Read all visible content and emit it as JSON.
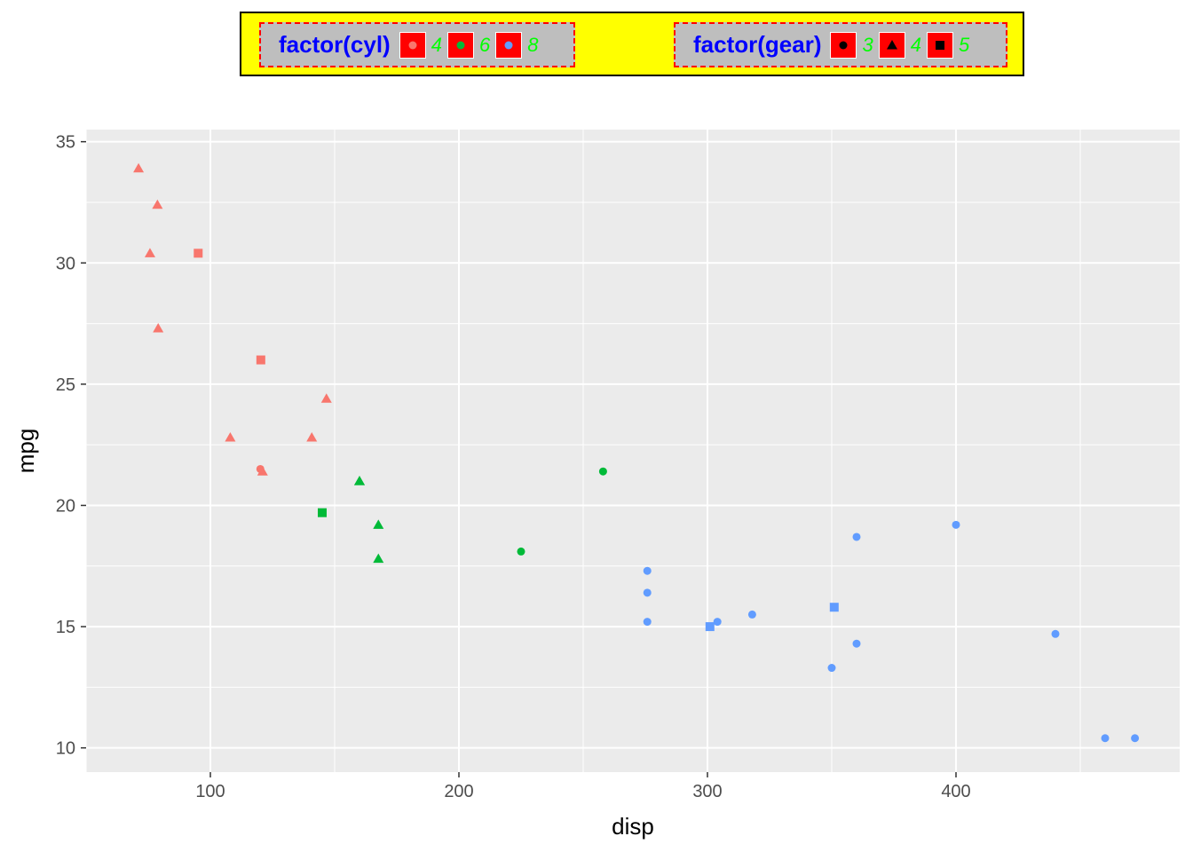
{
  "colors": {
    "panel": "#ebebeb",
    "grid": "#ffffff",
    "cyl4": "#f8766d",
    "cyl6": "#00ba38",
    "cyl8": "#619cff",
    "legend_bg": "#ffff00",
    "legend_box_bg": "#bebebe",
    "legend_box_border": "#ff0000",
    "legend_title": "#0000ff",
    "legend_label": "#00ff00",
    "legend_key_bg": "#ff0000"
  },
  "legend": {
    "cyl": {
      "title": "factor(cyl)",
      "items": [
        {
          "label": "4",
          "color": "#f8766d",
          "shape": "circle"
        },
        {
          "label": "6",
          "color": "#00ba38",
          "shape": "circle"
        },
        {
          "label": "8",
          "color": "#619cff",
          "shape": "circle"
        }
      ]
    },
    "gear": {
      "title": "factor(gear)",
      "items": [
        {
          "label": "3",
          "color": "#000000",
          "shape": "circle"
        },
        {
          "label": "4",
          "color": "#000000",
          "shape": "triangle"
        },
        {
          "label": "5",
          "color": "#000000",
          "shape": "square"
        }
      ]
    }
  },
  "chart_data": {
    "type": "scatter",
    "title": "",
    "xlabel": "disp",
    "ylabel": "mpg",
    "xlim": [
      50,
      490
    ],
    "ylim": [
      9,
      35.5
    ],
    "x_ticks": [
      100,
      200,
      300,
      400
    ],
    "y_ticks": [
      10,
      15,
      20,
      25,
      30,
      35
    ],
    "grid": true,
    "legend_position": "top",
    "points": [
      {
        "x": 160,
        "y": 21.0,
        "cyl": "6",
        "gear": "4"
      },
      {
        "x": 160,
        "y": 21.0,
        "cyl": "6",
        "gear": "4"
      },
      {
        "x": 108,
        "y": 22.8,
        "cyl": "4",
        "gear": "4"
      },
      {
        "x": 258,
        "y": 21.4,
        "cyl": "6",
        "gear": "3"
      },
      {
        "x": 360,
        "y": 18.7,
        "cyl": "8",
        "gear": "3"
      },
      {
        "x": 225,
        "y": 18.1,
        "cyl": "6",
        "gear": "3"
      },
      {
        "x": 360,
        "y": 14.3,
        "cyl": "8",
        "gear": "3"
      },
      {
        "x": 146.7,
        "y": 24.4,
        "cyl": "4",
        "gear": "4"
      },
      {
        "x": 140.8,
        "y": 22.8,
        "cyl": "4",
        "gear": "4"
      },
      {
        "x": 167.6,
        "y": 19.2,
        "cyl": "6",
        "gear": "4"
      },
      {
        "x": 167.6,
        "y": 17.8,
        "cyl": "6",
        "gear": "4"
      },
      {
        "x": 275.8,
        "y": 16.4,
        "cyl": "8",
        "gear": "3"
      },
      {
        "x": 275.8,
        "y": 17.3,
        "cyl": "8",
        "gear": "3"
      },
      {
        "x": 275.8,
        "y": 15.2,
        "cyl": "8",
        "gear": "3"
      },
      {
        "x": 472,
        "y": 10.4,
        "cyl": "8",
        "gear": "3"
      },
      {
        "x": 460,
        "y": 10.4,
        "cyl": "8",
        "gear": "3"
      },
      {
        "x": 440,
        "y": 14.7,
        "cyl": "8",
        "gear": "3"
      },
      {
        "x": 78.7,
        "y": 32.4,
        "cyl": "4",
        "gear": "4"
      },
      {
        "x": 75.7,
        "y": 30.4,
        "cyl": "4",
        "gear": "4"
      },
      {
        "x": 71.1,
        "y": 33.9,
        "cyl": "4",
        "gear": "4"
      },
      {
        "x": 120.1,
        "y": 21.5,
        "cyl": "4",
        "gear": "3"
      },
      {
        "x": 318,
        "y": 15.5,
        "cyl": "8",
        "gear": "3"
      },
      {
        "x": 304,
        "y": 15.2,
        "cyl": "8",
        "gear": "3"
      },
      {
        "x": 350,
        "y": 13.3,
        "cyl": "8",
        "gear": "3"
      },
      {
        "x": 400,
        "y": 19.2,
        "cyl": "8",
        "gear": "3"
      },
      {
        "x": 79,
        "y": 27.3,
        "cyl": "4",
        "gear": "4"
      },
      {
        "x": 120.3,
        "y": 26.0,
        "cyl": "4",
        "gear": "5"
      },
      {
        "x": 95.1,
        "y": 30.4,
        "cyl": "4",
        "gear": "5"
      },
      {
        "x": 351,
        "y": 15.8,
        "cyl": "8",
        "gear": "5"
      },
      {
        "x": 145,
        "y": 19.7,
        "cyl": "6",
        "gear": "5"
      },
      {
        "x": 301,
        "y": 15.0,
        "cyl": "8",
        "gear": "5"
      },
      {
        "x": 121,
        "y": 21.4,
        "cyl": "4",
        "gear": "4"
      }
    ]
  }
}
